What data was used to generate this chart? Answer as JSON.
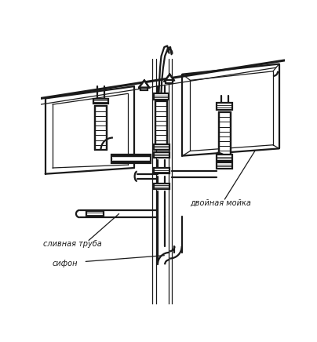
{
  "background_color": "#ffffff",
  "line_color": "#1a1a1a",
  "label_slivnaya": "сливная труба",
  "label_sifon": "сифон",
  "label_dvoynaya": "двойная мойка",
  "fig_width": 4.04,
  "fig_height": 4.36,
  "dpi": 100,
  "lw_main": 1.6,
  "lw_thin": 0.9,
  "lw_thick": 2.2,
  "font_size": 7.0
}
